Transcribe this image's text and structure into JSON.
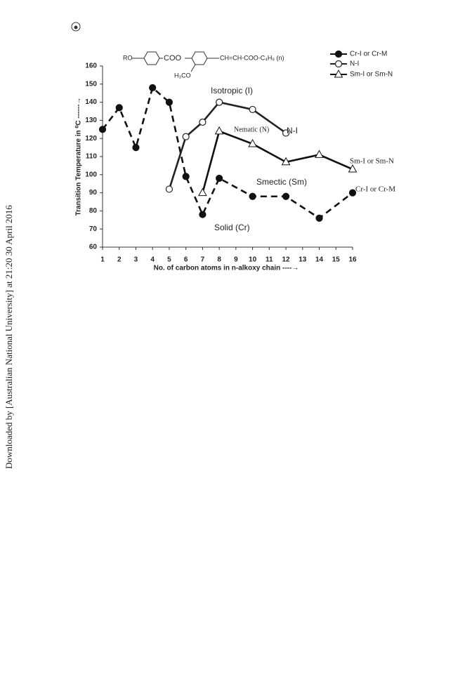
{
  "side_note": "Downloaded by [Australian National University] at 21:20 30 April 2016",
  "structure": {
    "left": "RO",
    "link": "COO",
    "right": "CH=CH-COO-C₄H₉ (n)",
    "sub": "H₃CO"
  },
  "chart_data": {
    "type": "line",
    "x_label": "No. of carbon atoms in n-alkoxy chain ----→",
    "y_label": "Transition Temperature in ⁰C ------→",
    "xlim": [
      1,
      16
    ],
    "xticks": [
      1,
      2,
      3,
      4,
      5,
      6,
      7,
      8,
      9,
      10,
      11,
      12,
      13,
      14,
      15,
      16
    ],
    "ylim": [
      60,
      160
    ],
    "yticks": [
      60,
      70,
      80,
      90,
      100,
      110,
      120,
      130,
      140,
      150,
      160
    ],
    "series": [
      {
        "name": "Cr-I or Cr-M",
        "color": "#111111",
        "line_style": "dashed",
        "marker": "filled-circle",
        "x": [
          1,
          2,
          3,
          4,
          5,
          6,
          7,
          8,
          10,
          12,
          14,
          16
        ],
        "values": [
          125,
          137,
          115,
          148,
          140,
          99,
          78,
          98,
          88,
          88,
          76,
          90
        ]
      },
      {
        "name": "N-I",
        "color": "#222222",
        "line_style": "solid",
        "marker": "open-circle",
        "x": [
          5,
          6,
          7,
          8,
          10,
          12
        ],
        "values": [
          92,
          121,
          129,
          140,
          136,
          123
        ]
      },
      {
        "name": "Sm-I or Sm-N",
        "color": "#111111",
        "line_style": "solid",
        "marker": "open-triangle",
        "x": [
          7,
          8,
          10,
          12,
          14,
          16
        ],
        "values": [
          90,
          124,
          117,
          107,
          111,
          103
        ]
      }
    ],
    "annotations": [
      "Isotropic (I)",
      "Nematic (N)",
      "N-I",
      "Sm-I or Sm-N",
      "Smectic (Sm)",
      "Cr-I or Cr-M",
      "Solid (Cr)"
    ],
    "legend": "top-right"
  }
}
